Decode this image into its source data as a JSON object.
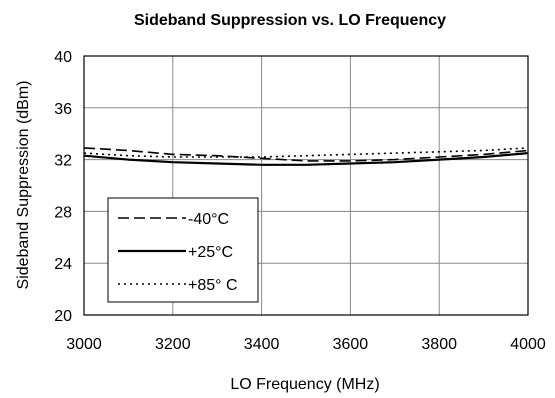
{
  "chart_data": {
    "type": "line",
    "title": "Sideband Suppression vs. LO Frequency",
    "xlabel": "LO Frequency (MHz)",
    "ylabel": "Sideband Suppression (dBm)",
    "xlim": [
      3000,
      4000
    ],
    "ylim": [
      20,
      40
    ],
    "xticks": [
      3000,
      3200,
      3400,
      3600,
      3800,
      4000
    ],
    "yticks": [
      20,
      24,
      28,
      32,
      36,
      40
    ],
    "grid": true,
    "legend_position": "bottom-left",
    "x": [
      3000,
      3100,
      3200,
      3300,
      3400,
      3500,
      3600,
      3700,
      3800,
      3900,
      4000
    ],
    "series": [
      {
        "name": "-40°C",
        "dash": "dashed",
        "values": [
          32.9,
          32.7,
          32.4,
          32.3,
          32.1,
          31.9,
          31.9,
          32.0,
          32.2,
          32.4,
          32.7
        ]
      },
      {
        "name": "+25°C",
        "dash": "solid",
        "values": [
          32.3,
          32.0,
          31.8,
          31.7,
          31.6,
          31.6,
          31.7,
          31.8,
          32.0,
          32.2,
          32.5
        ]
      },
      {
        "name": "+85° C",
        "dash": "dotted",
        "values": [
          32.5,
          32.3,
          32.2,
          32.2,
          32.2,
          32.3,
          32.4,
          32.5,
          32.6,
          32.7,
          32.9
        ]
      }
    ]
  }
}
